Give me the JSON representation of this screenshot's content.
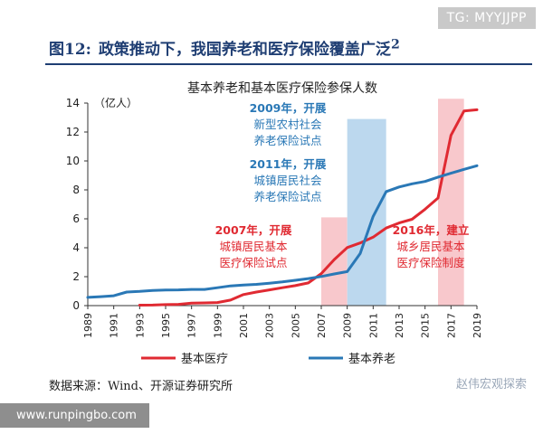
{
  "watermark_top": "TG: MYYJJPP",
  "figure": {
    "label": "图12:",
    "title": "政策推动下，我国养老和医疗保险覆盖广泛",
    "title_sup": "2"
  },
  "source": "数据来源：Wind、开源证券研究所",
  "watermark_bottom_right": "赵伟宏观探索",
  "watermark_bottom_left": "www.runpingbo.com",
  "colors": {
    "medical": "#e02a32",
    "pension": "#2a78b6",
    "pink_band": "#f8c8cc",
    "blue_band": "#bcd8ee",
    "title": "#1f3e73"
  },
  "chart_data": {
    "type": "line",
    "title": "基本养老和基本医疗保险参保人数",
    "ylabel": "（亿人）",
    "ylim": [
      0,
      14
    ],
    "yticks": [
      "0",
      "2",
      "4",
      "6",
      "8",
      "10",
      "12",
      "14"
    ],
    "xlim": [
      1989,
      2019
    ],
    "xticks": [
      "1989",
      "1991",
      "1993",
      "1995",
      "1997",
      "1999",
      "2001",
      "2003",
      "2005",
      "2007",
      "2009",
      "2011",
      "2013",
      "2015",
      "2017",
      "2019"
    ],
    "grid": false,
    "legend_position": "bottom",
    "series": [
      {
        "name": "基本医疗",
        "color": "#e02a32",
        "x": [
          1993,
          1994,
          1995,
          1996,
          1997,
          1998,
          1999,
          2000,
          2001,
          2002,
          2003,
          2004,
          2005,
          2006,
          2007,
          2008,
          2009,
          2010,
          2011,
          2012,
          2013,
          2014,
          2015,
          2016,
          2017,
          2018,
          2019
        ],
        "values": [
          0.03,
          0.04,
          0.07,
          0.09,
          0.17,
          0.19,
          0.21,
          0.38,
          0.76,
          0.94,
          1.09,
          1.24,
          1.38,
          1.57,
          2.21,
          3.18,
          4.01,
          4.33,
          4.73,
          5.36,
          5.71,
          5.97,
          6.66,
          7.44,
          11.77,
          13.45,
          13.54
        ]
      },
      {
        "name": "基本养老",
        "color": "#2a78b6",
        "x": [
          1989,
          1990,
          1991,
          1992,
          1993,
          1994,
          1995,
          1996,
          1997,
          1998,
          1999,
          2000,
          2001,
          2002,
          2003,
          2004,
          2005,
          2006,
          2007,
          2008,
          2009,
          2010,
          2011,
          2012,
          2013,
          2014,
          2015,
          2016,
          2017,
          2018,
          2019
        ],
        "values": [
          0.57,
          0.62,
          0.68,
          0.94,
          0.98,
          1.05,
          1.08,
          1.09,
          1.12,
          1.12,
          1.24,
          1.36,
          1.42,
          1.47,
          1.55,
          1.64,
          1.75,
          1.87,
          2.01,
          2.19,
          2.35,
          3.6,
          6.16,
          7.88,
          8.2,
          8.42,
          8.58,
          8.88,
          9.15,
          9.42,
          9.67
        ]
      }
    ],
    "bands": [
      {
        "color": "pink",
        "x0": 2007,
        "x1": 2009,
        "y1": 6.1
      },
      {
        "color": "blue",
        "x0": 2009,
        "x1": 2012,
        "y1": 12.9
      },
      {
        "color": "pink",
        "x0": 2016,
        "x1": 2018,
        "y1": 14.3
      }
    ],
    "annotations": [
      {
        "lines": [
          "2009年，开展",
          "新型农村社会",
          "养老保险试点"
        ],
        "color": "#2a78b6"
      },
      {
        "lines": [
          "2011年，开展",
          "城镇居民社会",
          "养老保险试点"
        ],
        "color": "#2a78b6"
      },
      {
        "lines": [
          "2007年，开展",
          "城镇居民基本",
          "医疗保险试点"
        ],
        "color": "#e02a32"
      },
      {
        "lines": [
          "2016年，建立",
          "城乡居民基本",
          "医疗保险制度"
        ],
        "color": "#e02a32"
      }
    ]
  }
}
